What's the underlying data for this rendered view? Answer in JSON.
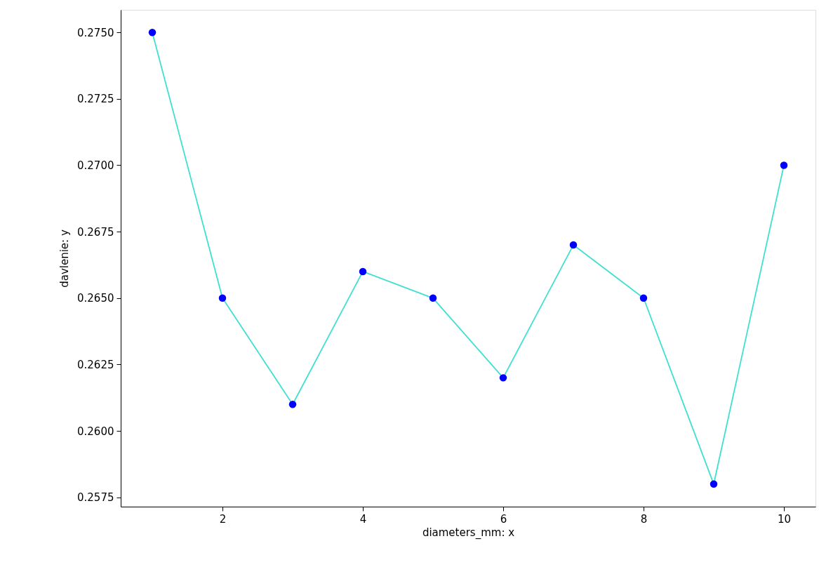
{
  "chart_data": {
    "type": "line",
    "xlabel": "diameters_mm: x",
    "ylabel": "davlenie: y",
    "x": [
      1,
      2,
      3,
      4,
      5,
      6,
      7,
      8,
      9,
      10
    ],
    "series": [
      {
        "type": "line",
        "color": "#40e0d0",
        "marker": "none",
        "values": [
          0.275,
          0.265,
          0.261,
          0.266,
          0.265,
          0.262,
          0.267,
          0.265,
          0.258,
          0.27
        ]
      },
      {
        "type": "scatter",
        "color": "#0000ff",
        "marker": "circle",
        "values": [
          0.275,
          0.265,
          0.261,
          0.266,
          0.265,
          0.262,
          0.267,
          0.265,
          0.258,
          0.27
        ]
      }
    ],
    "xlim": [
      0.55,
      10.45
    ],
    "ylim": [
      0.25715,
      0.27585
    ],
    "xticks": [
      2,
      4,
      6,
      8,
      10
    ],
    "yticks": [
      {
        "value": 0.2575,
        "label": "0.2575"
      },
      {
        "value": 0.26,
        "label": "0.2600"
      },
      {
        "value": 0.2625,
        "label": "0.2625"
      },
      {
        "value": 0.265,
        "label": "0.2650"
      },
      {
        "value": 0.2675,
        "label": "0.2675"
      },
      {
        "value": 0.27,
        "label": "0.2700"
      },
      {
        "value": 0.2725,
        "label": "0.2725"
      },
      {
        "value": 0.275,
        "label": "0.2750"
      }
    ],
    "grid": false
  }
}
